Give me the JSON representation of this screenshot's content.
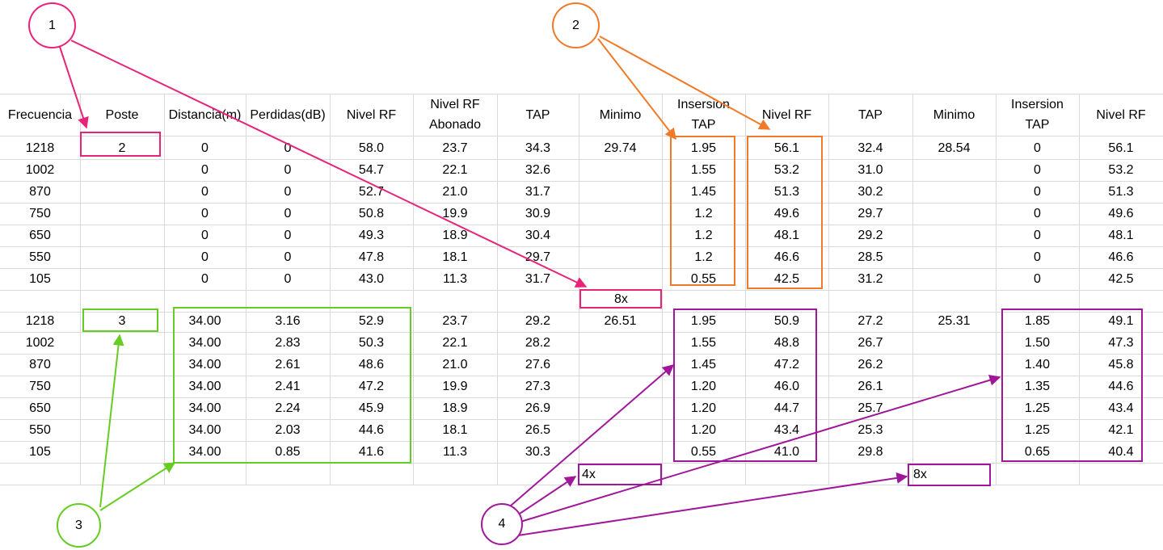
{
  "headers": [
    "Frecuencia",
    "Poste",
    "Distancia(m)",
    "Perdidas(dB)",
    "Nivel RF",
    "Nivel RF\nAbonado",
    "TAP",
    "Minimo",
    "Insersion\nTAP",
    "Nivel RF",
    "TAP",
    "Minimo",
    "Insersion\nTAP",
    "Nivel RF"
  ],
  "rows_block1": [
    [
      "1218",
      "2",
      "0",
      "0",
      "58.0",
      "23.7",
      "34.3",
      "29.74",
      "1.95",
      "56.1",
      "32.4",
      "28.54",
      "0",
      "56.1"
    ],
    [
      "1002",
      "",
      "0",
      "0",
      "54.7",
      "22.1",
      "32.6",
      "",
      "1.55",
      "53.2",
      "31.0",
      "",
      "0",
      "53.2"
    ],
    [
      "870",
      "",
      "0",
      "0",
      "52.7",
      "21.0",
      "31.7",
      "",
      "1.45",
      "51.3",
      "30.2",
      "",
      "0",
      "51.3"
    ],
    [
      "750",
      "",
      "0",
      "0",
      "50.8",
      "19.9",
      "30.9",
      "",
      "1.2",
      "49.6",
      "29.7",
      "",
      "0",
      "49.6"
    ],
    [
      "650",
      "",
      "0",
      "0",
      "49.3",
      "18.9",
      "30.4",
      "",
      "1.2",
      "48.1",
      "29.2",
      "",
      "0",
      "48.1"
    ],
    [
      "550",
      "",
      "0",
      "0",
      "47.8",
      "18.1",
      "29.7",
      "",
      "1.2",
      "46.6",
      "28.5",
      "",
      "0",
      "46.6"
    ],
    [
      "105",
      "",
      "0",
      "0",
      "43.0",
      "11.3",
      "31.7",
      "",
      "0.55",
      "42.5",
      "31.2",
      "",
      "0",
      "42.5"
    ]
  ],
  "rows_block2": [
    [
      "1218",
      "3",
      "34.00",
      "3.16",
      "52.9",
      "23.7",
      "29.2",
      "26.51",
      "1.95",
      "50.9",
      "27.2",
      "25.31",
      "1.85",
      "49.1"
    ],
    [
      "1002",
      "",
      "34.00",
      "2.83",
      "50.3",
      "22.1",
      "28.2",
      "",
      "1.55",
      "48.8",
      "26.7",
      "",
      "1.50",
      "47.3"
    ],
    [
      "870",
      "",
      "34.00",
      "2.61",
      "48.6",
      "21.0",
      "27.6",
      "",
      "1.45",
      "47.2",
      "26.2",
      "",
      "1.40",
      "45.8"
    ],
    [
      "750",
      "",
      "34.00",
      "2.41",
      "47.2",
      "19.9",
      "27.3",
      "",
      "1.20",
      "46.0",
      "26.1",
      "",
      "1.35",
      "44.6"
    ],
    [
      "650",
      "",
      "34.00",
      "2.24",
      "45.9",
      "18.9",
      "26.9",
      "",
      "1.20",
      "44.7",
      "25.7",
      "",
      "1.25",
      "43.4"
    ],
    [
      "550",
      "",
      "34.00",
      "2.03",
      "44.6",
      "18.1",
      "26.5",
      "",
      "1.20",
      "43.4",
      "25.3",
      "",
      "1.25",
      "42.1"
    ],
    [
      "105",
      "",
      "34.00",
      "0.85",
      "41.6",
      "11.3",
      "30.3",
      "",
      "0.55",
      "41.0",
      "29.8",
      "",
      "0.65",
      "40.4"
    ]
  ],
  "annotations": {
    "circle1": "1",
    "circle2": "2",
    "circle3": "3",
    "circle4": "4",
    "label_8x_top": "8x",
    "label_4x": "4x",
    "label_8x_bottom": "8x"
  },
  "colors": {
    "pink": "#e8237a",
    "orange": "#f07a28",
    "green": "#66cc22",
    "purple": "#a0179b",
    "grid": "#d9d9d9"
  }
}
